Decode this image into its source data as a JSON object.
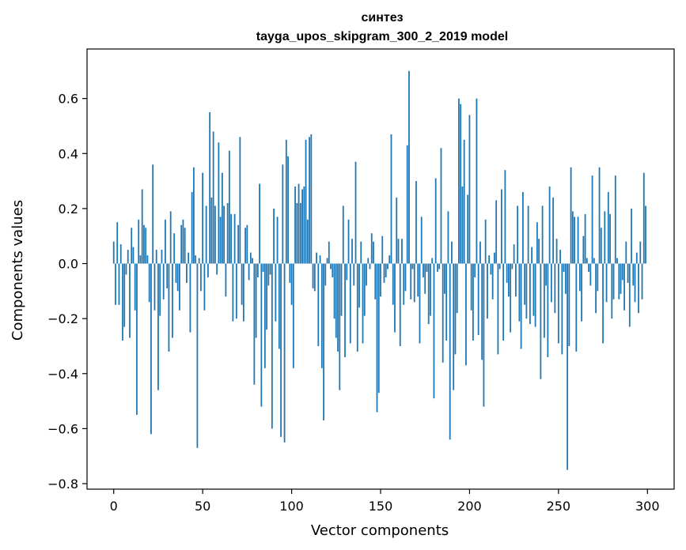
{
  "chart_data": {
    "type": "bar",
    "title": "синтез",
    "subtitle": "tayga_upos_skipgram_300_2_2019 model",
    "xlabel": "Vector components",
    "ylabel": "Components values",
    "xlim": [
      -15,
      315
    ],
    "ylim": [
      -0.82,
      0.78
    ],
    "xticks": [
      0,
      50,
      100,
      150,
      200,
      250,
      300
    ],
    "xtick_labels": [
      "0",
      "50",
      "100",
      "150",
      "200",
      "250",
      "300"
    ],
    "yticks": [
      -0.8,
      -0.6,
      -0.4,
      -0.2,
      0.0,
      0.2,
      0.4,
      0.6
    ],
    "ytick_labels": [
      "−0.8",
      "−0.6",
      "−0.4",
      "−0.2",
      "0.0",
      "0.2",
      "0.4",
      "0.6"
    ],
    "bar_color": "#1f77b4",
    "grid": false,
    "values": [
      0.08,
      -0.15,
      0.15,
      -0.15,
      0.07,
      -0.28,
      -0.23,
      -0.04,
      0.05,
      -0.27,
      0.13,
      0.06,
      -0.17,
      -0.55,
      0.16,
      0.03,
      0.27,
      0.14,
      0.13,
      0.03,
      -0.14,
      -0.62,
      0.36,
      -0.17,
      0.05,
      -0.46,
      -0.19,
      0.05,
      -0.13,
      0.16,
      -0.09,
      -0.32,
      0.19,
      -0.27,
      0.11,
      -0.07,
      -0.1,
      -0.17,
      0.14,
      0.16,
      0.13,
      -0.07,
      0.04,
      -0.25,
      0.26,
      0.35,
      0.03,
      -0.67,
      0.02,
      -0.1,
      0.33,
      -0.17,
      0.21,
      -0.05,
      0.55,
      0.24,
      0.48,
      0.21,
      -0.04,
      0.44,
      0.17,
      0.33,
      0.21,
      -0.12,
      0.22,
      0.41,
      0.18,
      -0.21,
      0.18,
      -0.2,
      0.14,
      0.46,
      -0.15,
      -0.21,
      0.13,
      0.14,
      -0.06,
      0.04,
      0.02,
      -0.44,
      -0.27,
      -0.05,
      0.29,
      -0.52,
      -0.03,
      -0.38,
      -0.24,
      -0.08,
      -0.04,
      -0.6,
      0.2,
      -0.21,
      0.17,
      -0.31,
      -0.63,
      0.36,
      -0.65,
      0.45,
      0.39,
      -0.07,
      -0.15,
      -0.38,
      0.28,
      0.22,
      0.29,
      0.22,
      0.27,
      0.28,
      0.45,
      0.16,
      0.46,
      0.47,
      -0.09,
      -0.1,
      0.04,
      -0.3,
      0.03,
      -0.38,
      -0.57,
      -0.08,
      0.02,
      0.08,
      -0.02,
      -0.05,
      -0.2,
      -0.27,
      -0.32,
      -0.46,
      -0.19,
      0.21,
      -0.34,
      -0.06,
      0.16,
      -0.29,
      0.09,
      -0.08,
      0.37,
      -0.32,
      -0.16,
      0.08,
      -0.29,
      -0.19,
      -0.08,
      0.02,
      -0.02,
      0.11,
      0.08,
      -0.13,
      -0.54,
      -0.47,
      -0.12,
      0.1,
      -0.07,
      -0.05,
      -0.02,
      0.03,
      0.47,
      -0.15,
      -0.25,
      0.24,
      0.09,
      -0.3,
      0.09,
      -0.15,
      -0.1,
      0.43,
      0.7,
      -0.13,
      -0.02,
      -0.14,
      0.3,
      -0.12,
      -0.29,
      0.17,
      -0.05,
      -0.11,
      -0.03,
      -0.22,
      -0.19,
      0.02,
      -0.49,
      0.31,
      -0.03,
      -0.02,
      0.42,
      -0.36,
      -0.11,
      -0.28,
      0.19,
      -0.64,
      0.08,
      -0.46,
      -0.33,
      -0.18,
      0.6,
      0.58,
      0.28,
      0.45,
      -0.37,
      0.25,
      0.54,
      -0.17,
      -0.28,
      -0.05,
      0.6,
      -0.26,
      0.08,
      -0.35,
      -0.52,
      0.16,
      -0.2,
      0.03,
      -0.04,
      -0.13,
      0.04,
      0.23,
      -0.33,
      -0.02,
      0.27,
      -0.28,
      0.34,
      -0.07,
      -0.12,
      -0.25,
      -0.02,
      0.07,
      -0.12,
      0.21,
      -0.21,
      -0.31,
      0.26,
      -0.15,
      -0.2,
      0.21,
      -0.22,
      0.06,
      -0.19,
      -0.23,
      0.15,
      0.09,
      -0.42,
      0.21,
      -0.27,
      -0.08,
      -0.34,
      0.28,
      -0.14,
      0.24,
      -0.18,
      0.09,
      -0.29,
      0.05,
      -0.33,
      -0.03,
      -0.11,
      -0.75,
      -0.3,
      0.35,
      0.19,
      0.17,
      -0.32,
      0.17,
      -0.1,
      -0.21,
      0.1,
      0.18,
      0.02,
      -0.03,
      -0.08,
      0.32,
      0.02,
      -0.18,
      -0.1,
      0.35,
      0.13,
      -0.29,
      0.19,
      -0.14,
      0.26,
      0.18,
      -0.2,
      -0.13,
      0.32,
      0.02,
      -0.13,
      -0.11,
      -0.06,
      -0.17,
      0.08,
      -0.07,
      -0.23,
      0.2,
      -0.08,
      -0.14,
      0.04,
      -0.18,
      0.08,
      -0.13,
      0.33,
      0.21
    ]
  }
}
